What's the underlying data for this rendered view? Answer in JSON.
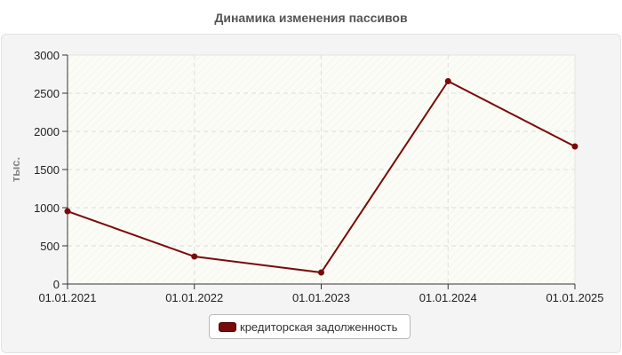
{
  "chart_data": {
    "type": "line",
    "title": "Динамика изменения пассивов",
    "ylabel": "тыс.",
    "xlabel": "",
    "categories": [
      "01.01.2021",
      "01.01.2022",
      "01.01.2023",
      "01.01.2024",
      "01.01.2025"
    ],
    "series": [
      {
        "name": "кредиторская задолженность",
        "values": [
          953,
          360,
          151,
          2657,
          1802
        ],
        "color": "#7a0a0a"
      }
    ],
    "ylim": [
      0,
      3000
    ],
    "yticks": [
      0,
      500,
      1000,
      1500,
      2000,
      2500,
      3000
    ],
    "grid": true,
    "legend": "bottom"
  }
}
